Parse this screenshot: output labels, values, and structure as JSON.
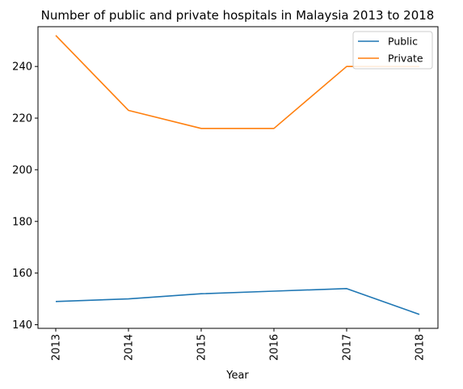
{
  "chart_data": {
    "type": "line",
    "title": "Number of public and private hospitals in Malaysia 2013 to 2018",
    "xlabel": "Year",
    "ylabel": "",
    "categories": [
      "2013",
      "2014",
      "2015",
      "2016",
      "2017",
      "2018"
    ],
    "series": [
      {
        "name": "Public",
        "color": "#1f77b4",
        "values": [
          149,
          150,
          152,
          153,
          154,
          144
        ]
      },
      {
        "name": "Private",
        "color": "#ff7f0e",
        "values": [
          252,
          223,
          216,
          216,
          240,
          240
        ]
      }
    ],
    "yticks": [
      140,
      160,
      180,
      200,
      220,
      240
    ],
    "ylim": [
      138.6,
      255.4
    ],
    "grid": false,
    "legend_position": "top-right"
  }
}
